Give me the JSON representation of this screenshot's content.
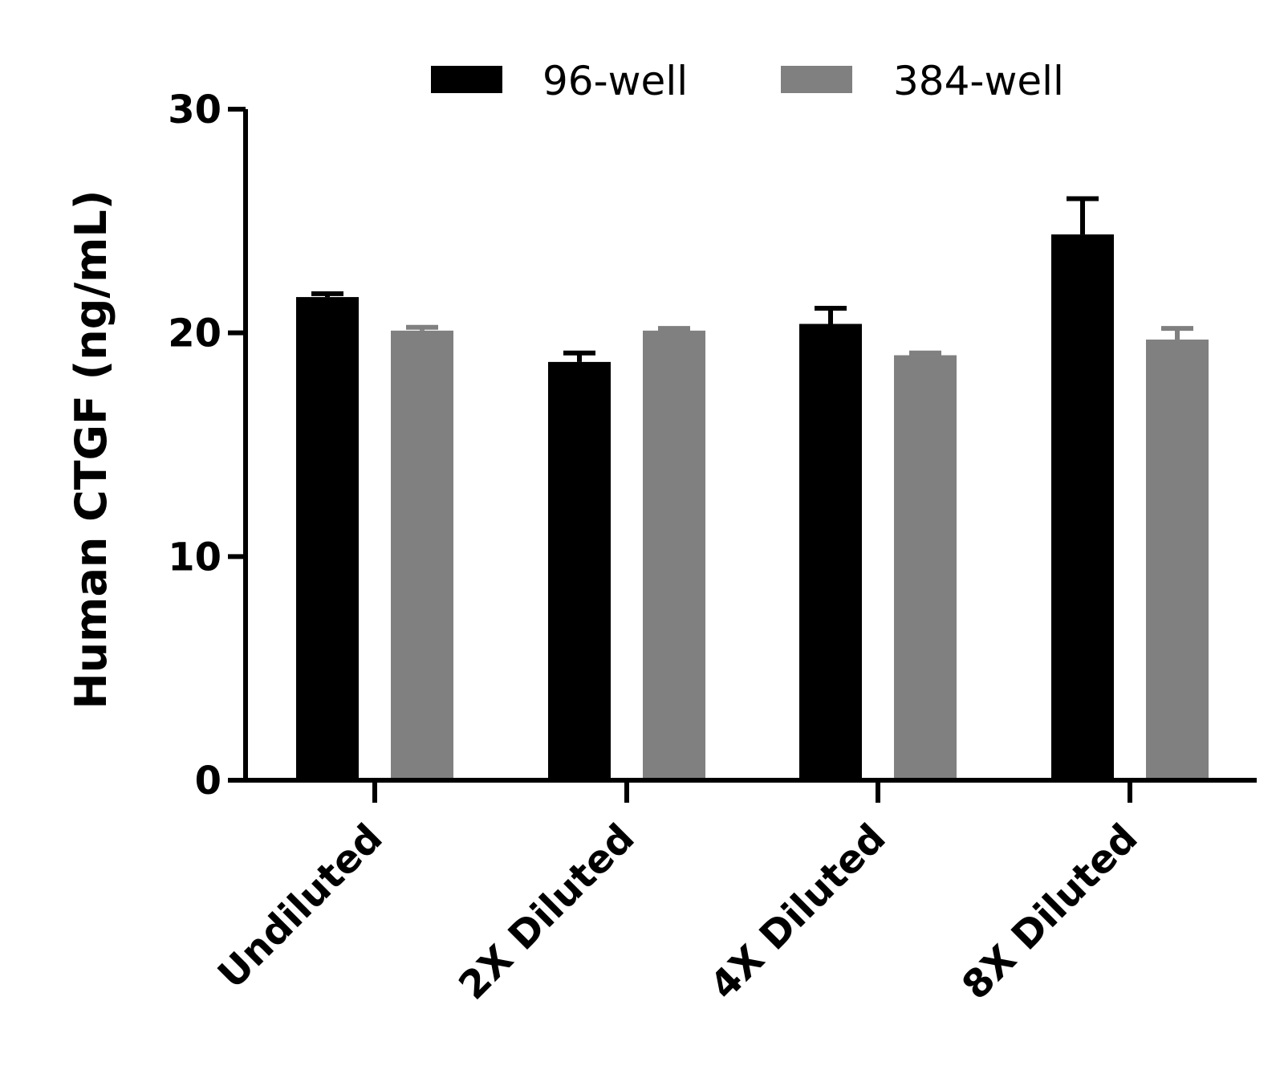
{
  "chart_data": {
    "type": "bar",
    "title": "",
    "xlabel": "",
    "ylabel": "Human CTGF (ng/mL)",
    "ylim": [
      0,
      30
    ],
    "yticks": [
      0,
      10,
      20,
      30
    ],
    "grid": false,
    "legend_position": "top",
    "categories": [
      "Undiluted",
      "2X Diluted",
      "4X Diluted",
      "8X Diluted"
    ],
    "series": [
      {
        "name": "96-well",
        "color": "#000000",
        "values": [
          21.6,
          18.7,
          20.4,
          24.4
        ],
        "errors": [
          0.15,
          0.4,
          0.7,
          1.6
        ]
      },
      {
        "name": "384-well",
        "color": "#808080",
        "values": [
          20.1,
          20.1,
          19.0,
          19.7
        ],
        "errors": [
          0.15,
          0.1,
          0.1,
          0.5
        ]
      }
    ]
  }
}
